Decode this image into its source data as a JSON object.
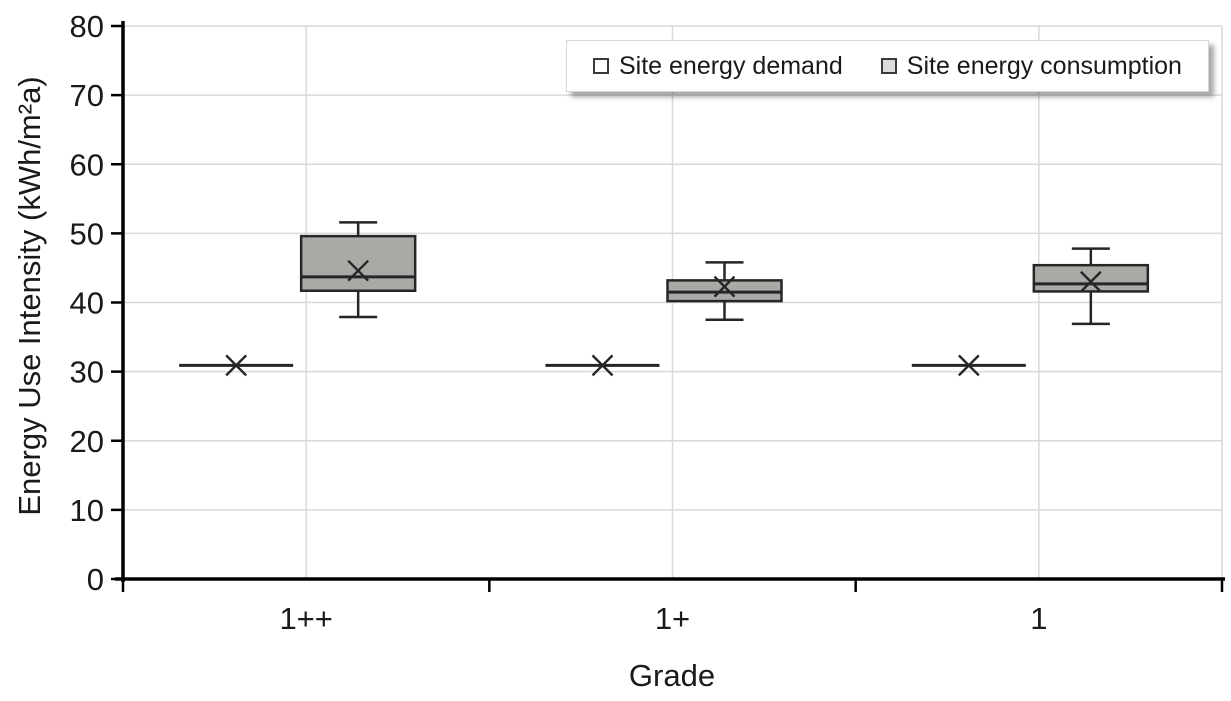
{
  "chart_data": {
    "type": "boxplot",
    "title": "",
    "xlabel": "Grade",
    "ylabel": "Energy Use Intensity (kWh/m²a)",
    "ylim": [
      0,
      80
    ],
    "yticks": [
      0,
      10,
      20,
      30,
      40,
      50,
      60,
      70,
      80
    ],
    "grid": true,
    "legend_position": "top-right",
    "categories": [
      "1++",
      "1+",
      "1"
    ],
    "series": [
      {
        "name": "Site energy demand",
        "fill": "#ffffff",
        "legend_swatch_fill": "#ffffff",
        "data": [
          {
            "min": 30.9,
            "q1": 30.9,
            "median": 30.9,
            "q3": 30.9,
            "max": 30.9,
            "mean": 30.9
          },
          {
            "min": 30.9,
            "q1": 30.9,
            "median": 30.9,
            "q3": 30.9,
            "max": 30.9,
            "mean": 30.9
          },
          {
            "min": 30.9,
            "q1": 30.9,
            "median": 30.9,
            "q3": 30.9,
            "max": 30.9,
            "mean": 30.9
          }
        ]
      },
      {
        "name": "Site energy consumption",
        "fill": "#aba9a6",
        "legend_swatch_fill": "#dcdcdc",
        "data": [
          {
            "min": 37.9,
            "q1": 41.7,
            "median": 43.7,
            "q3": 49.6,
            "max": 51.6,
            "mean": 44.6
          },
          {
            "min": 37.5,
            "q1": 40.2,
            "median": 41.5,
            "q3": 43.2,
            "max": 45.8,
            "mean": 42.3
          },
          {
            "min": 36.9,
            "q1": 41.6,
            "median": 42.7,
            "q3": 45.4,
            "max": 47.8,
            "mean": 43.0
          }
        ]
      }
    ]
  },
  "colors": {
    "box_border": "#262626",
    "axis": "#000000",
    "gridline": "#d9d9d9",
    "text": "#1a1a1a",
    "background": "#ffffff"
  }
}
